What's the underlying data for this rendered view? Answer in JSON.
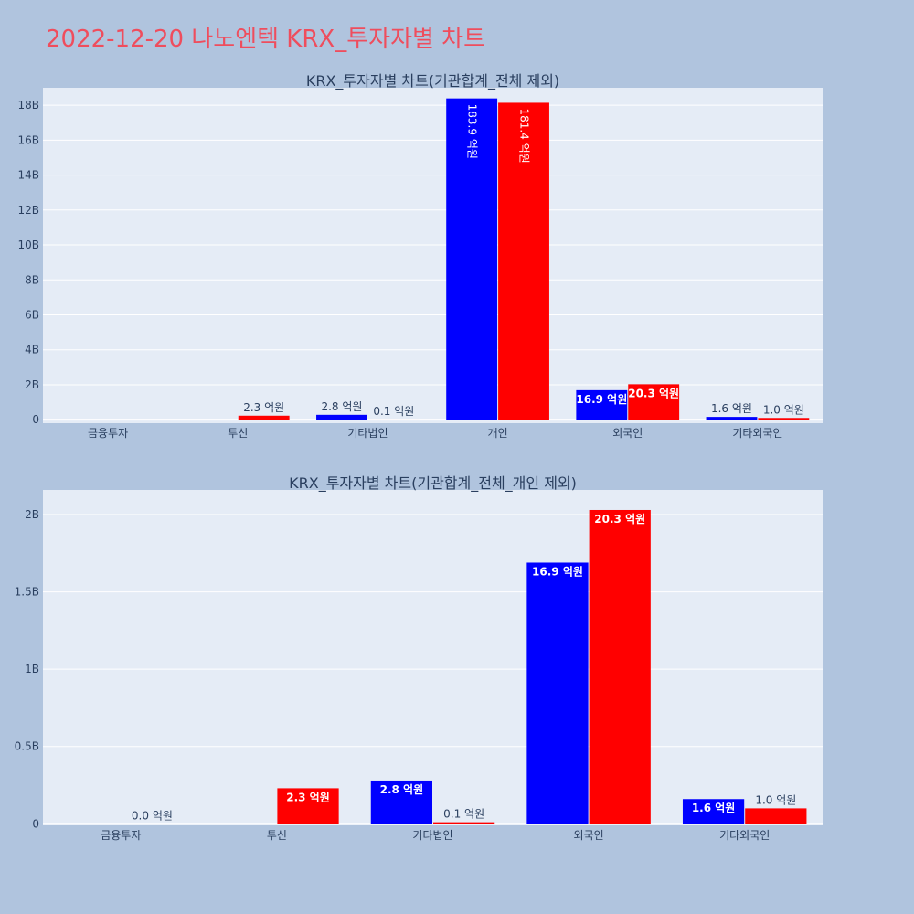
{
  "page_title": "2022-12-20 나노엔텍 KRX_투자자별 차트",
  "colors": {
    "series_1": "#0000ff",
    "series_2": "#ff0000",
    "plot_bg": "#e5ecf6",
    "page_bg": "#b0c4de",
    "title": "#ef4d5d"
  },
  "chart_data": [
    {
      "type": "bar",
      "title": "KRX_투자자별 차트(기관합계_전체 제외)",
      "categories": [
        "금융투자",
        "투신",
        "기타법인",
        "개인",
        "외국인",
        "기타외국인"
      ],
      "series": [
        {
          "color": "#0000ff",
          "values": [
            null,
            null,
            280000000,
            18390000000,
            1690000000,
            160000000
          ],
          "labels": [
            "",
            "",
            "2.8 억원",
            "183.9 억원",
            "16.9 억원",
            "1.6 억원"
          ]
        },
        {
          "color": "#ff0000",
          "values": [
            null,
            230000000,
            10000000,
            18140000000,
            2030000000,
            100000000
          ],
          "labels": [
            "",
            "2.3 억원",
            "0.1 억원",
            "181.4 억원",
            "20.3 억원",
            "1.0 억원"
          ]
        }
      ],
      "ylim": [
        -200000000,
        19000000000
      ],
      "yticks": [
        0,
        2000000000,
        4000000000,
        6000000000,
        8000000000,
        10000000000,
        12000000000,
        14000000000,
        16000000000,
        18000000000
      ],
      "ytick_labels": [
        "0",
        "2B",
        "4B",
        "6B",
        "8B",
        "10B",
        "12B",
        "14B",
        "16B",
        "18B"
      ],
      "grid": true,
      "xlabel": "",
      "ylabel": ""
    },
    {
      "type": "bar",
      "title": "KRX_투자자별 차트(기관합계_전체_개인 제외)",
      "categories": [
        "금융투자",
        "투신",
        "기타법인",
        "외국인",
        "기타외국인"
      ],
      "series": [
        {
          "color": "#0000ff",
          "values": [
            null,
            null,
            280000000,
            1690000000,
            160000000
          ],
          "labels": [
            "",
            "",
            "2.8 억원",
            "16.9 억원",
            "1.6 억원"
          ]
        },
        {
          "color": "#ff0000",
          "values": [
            0,
            230000000,
            10000000,
            2030000000,
            100000000
          ],
          "labels": [
            "0.0 억원",
            "2.3 억원",
            "0.1 억원",
            "20.3 억원",
            "1.0 억원"
          ]
        }
      ],
      "ylim": [
        -10000000,
        2160000000
      ],
      "yticks": [
        0,
        500000000,
        1000000000,
        1500000000,
        2000000000
      ],
      "ytick_labels": [
        "0",
        "0.5B",
        "1B",
        "1.5B",
        "2B"
      ],
      "grid": true,
      "xlabel": "",
      "ylabel": ""
    }
  ]
}
